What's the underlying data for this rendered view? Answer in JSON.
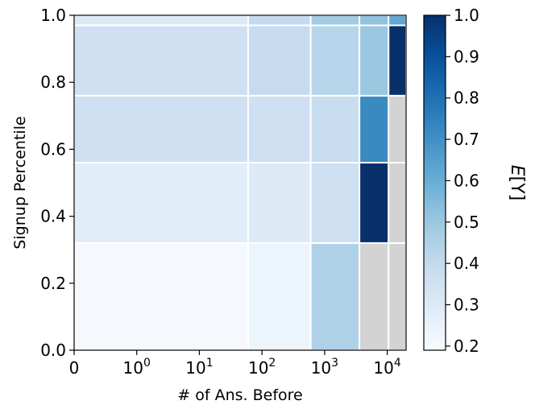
{
  "chart_data": {
    "type": "heatmap",
    "xlabel": "# of Ans. Before",
    "ylabel": "Signup Percentile",
    "colorbar_label": "E[Y]",
    "colormap": "Blues",
    "missing_color": "#d3d3d3",
    "x_scale": "symlog",
    "x_edges": [
      0,
      60,
      600,
      3600,
      10500,
      20000
    ],
    "y_edges": [
      0,
      0.32,
      0.56,
      0.76,
      0.97,
      1.0
    ],
    "xlim": [
      0,
      20000
    ],
    "ylim": [
      0,
      1.0
    ],
    "x_ticks": [
      {
        "value": 0,
        "base": "0",
        "exp": ""
      },
      {
        "value": 1,
        "base": "10",
        "exp": "0"
      },
      {
        "value": 10,
        "base": "10",
        "exp": "1"
      },
      {
        "value": 100,
        "base": "10",
        "exp": "2"
      },
      {
        "value": 1000,
        "base": "10",
        "exp": "3"
      },
      {
        "value": 10000,
        "base": "10",
        "exp": "4"
      }
    ],
    "y_ticks": [
      0.0,
      0.2,
      0.4,
      0.6,
      0.8,
      1.0
    ],
    "y_tick_labels": [
      "0.0",
      "0.2",
      "0.4",
      "0.6",
      "0.8",
      "1.0"
    ],
    "values": [
      [
        0.2,
        0.23,
        0.45,
        null,
        null
      ],
      [
        0.28,
        0.3,
        0.36,
        1.0,
        null
      ],
      [
        0.36,
        0.36,
        0.38,
        0.72,
        null
      ],
      [
        0.36,
        0.39,
        0.43,
        0.5,
        1.0
      ],
      [
        0.3,
        0.4,
        0.48,
        0.52,
        0.62
      ]
    ],
    "colorbar": {
      "range": [
        0.19,
        1.0
      ],
      "ticks": [
        0.2,
        0.3,
        0.4,
        0.5,
        0.6,
        0.7,
        0.8,
        0.9,
        1.0
      ],
      "tick_labels": [
        "0.2",
        "0.3",
        "0.4",
        "0.5",
        "0.6",
        "0.7",
        "0.8",
        "0.9",
        "1.0"
      ]
    }
  }
}
